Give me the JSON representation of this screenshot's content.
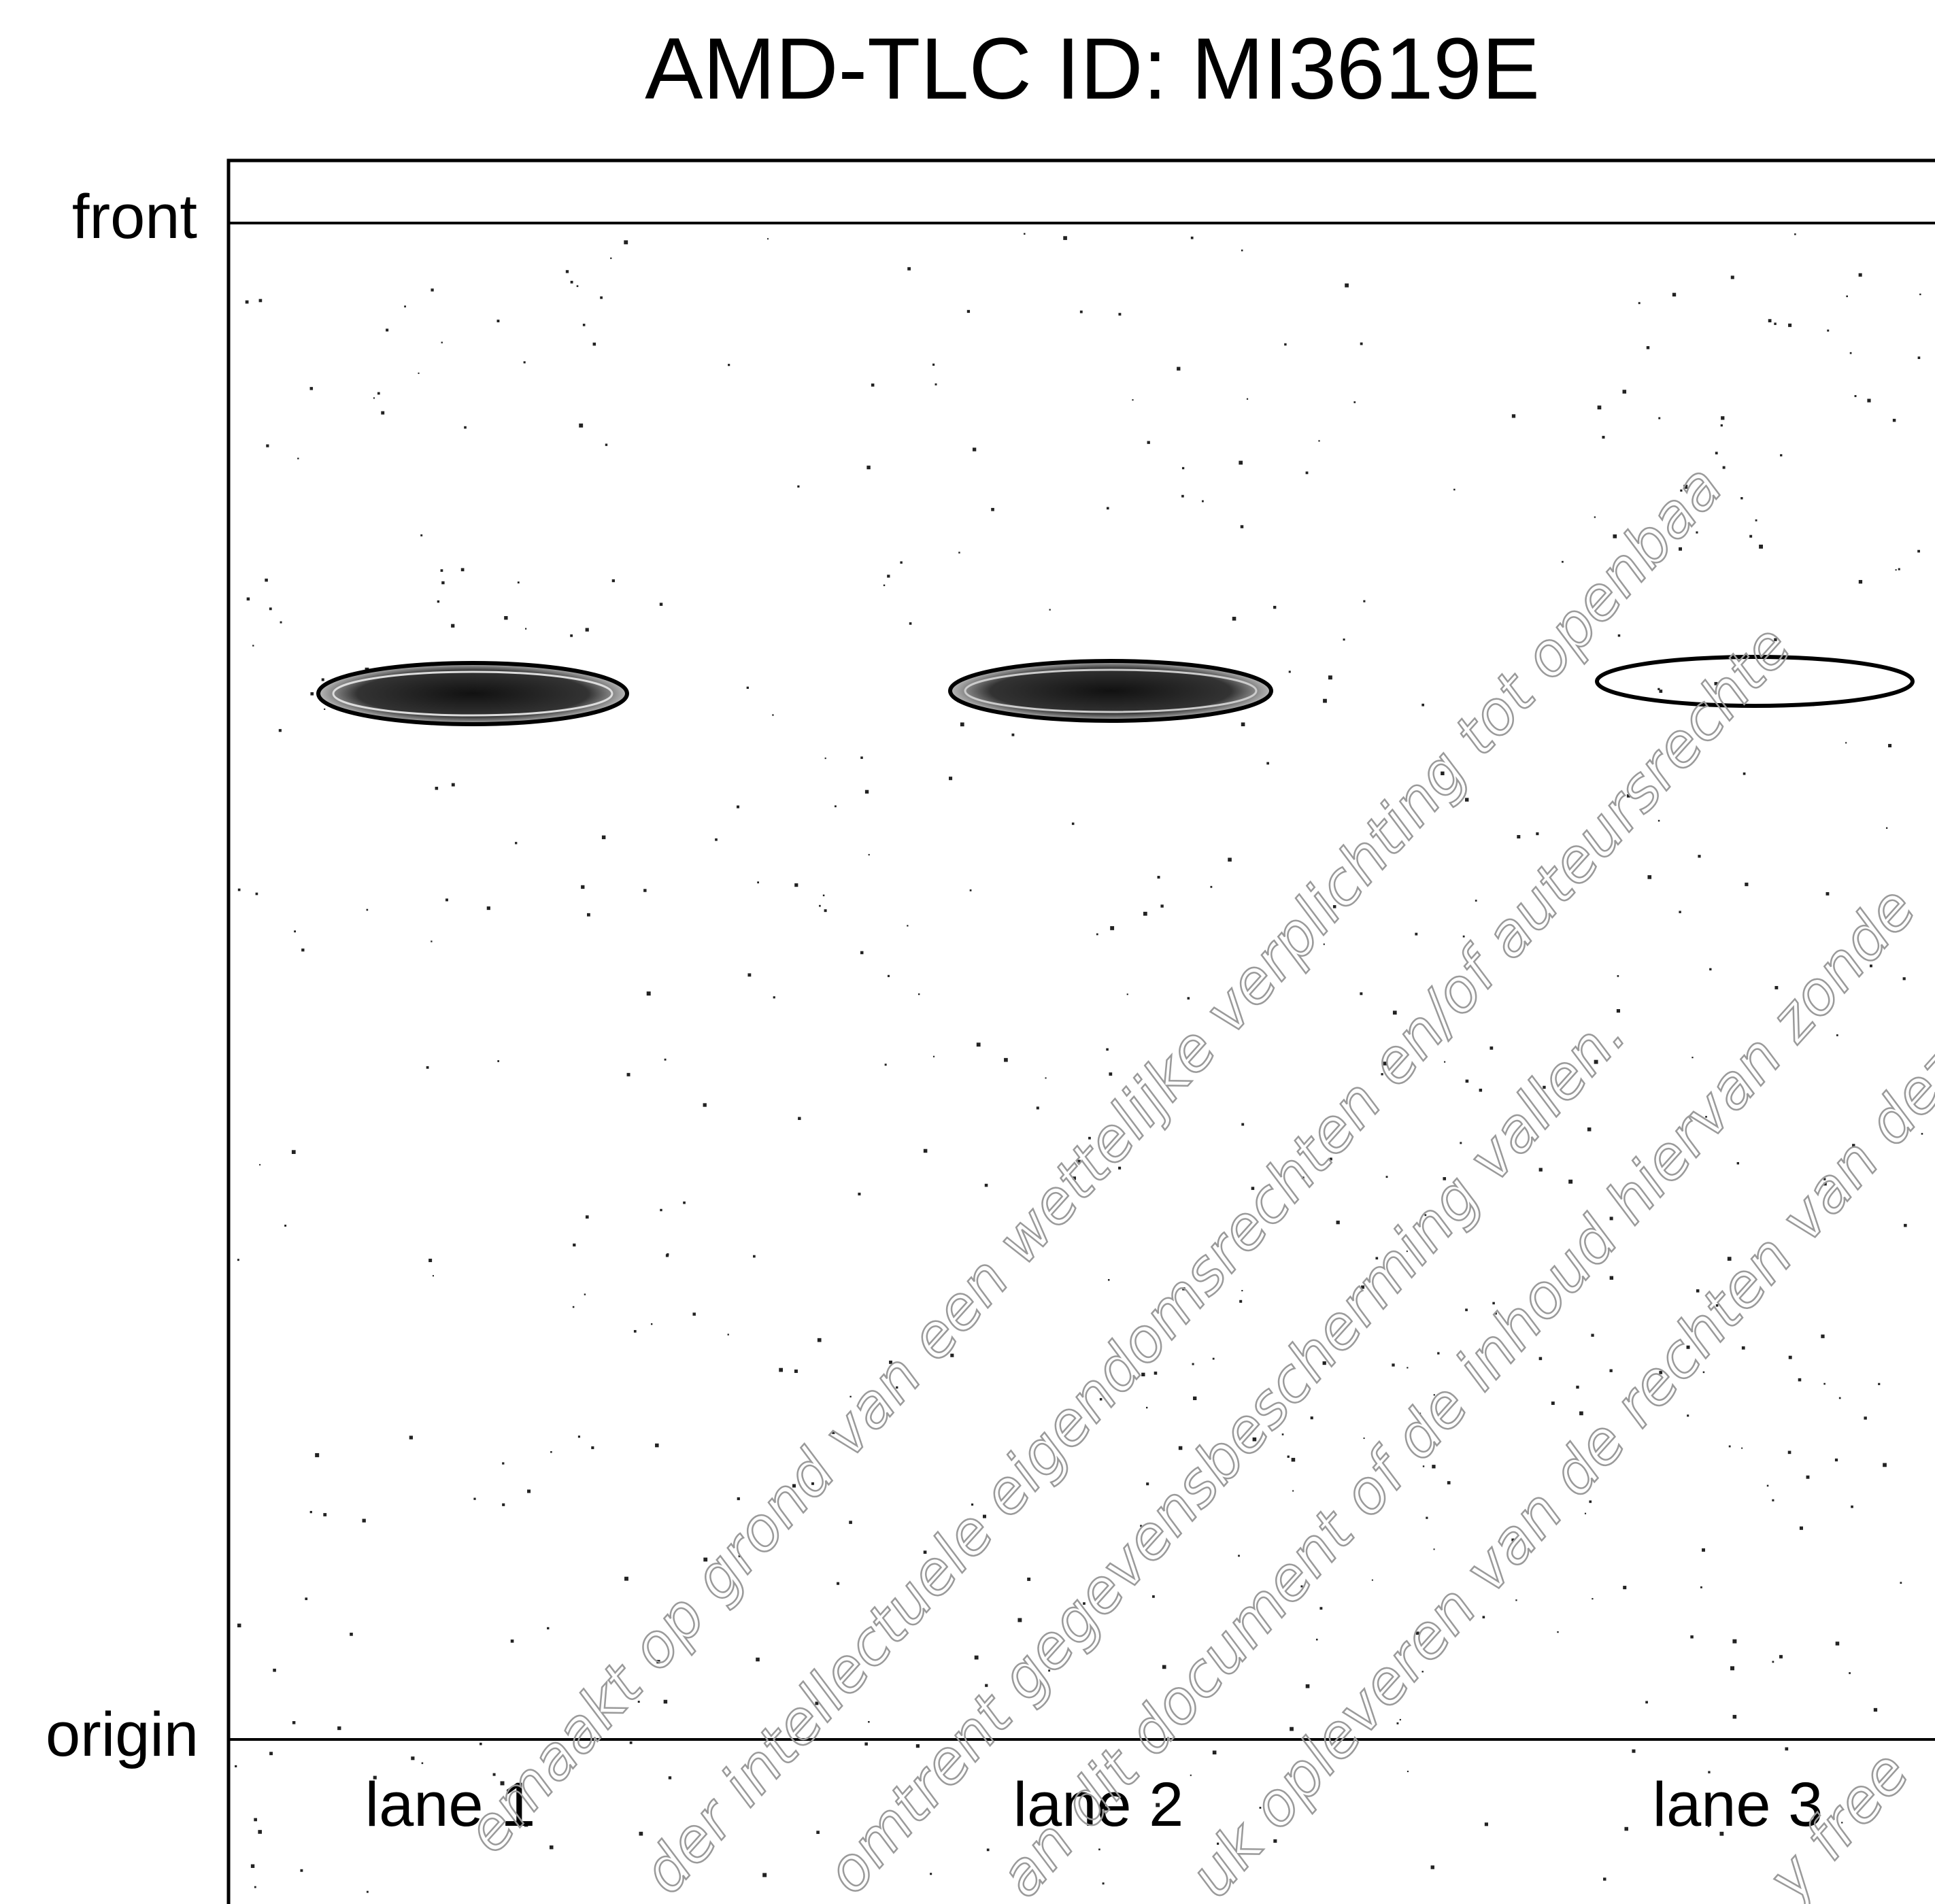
{
  "header": {
    "title": "AMD-TLC ID: MI3619E"
  },
  "plate": {
    "front_label": "front",
    "origin_label": "origin",
    "lanes": [
      {
        "label": "lane 1"
      },
      {
        "label": "lane 2"
      },
      {
        "label": "lane 3"
      }
    ]
  },
  "watermark": {
    "lines": [
      "emaakt op grond van een wettelijke verplichting tot openbaa",
      "der intellectuele eigendomsrechten en/of auteursrechte",
      "omtrent gegevensbescherming vallen.",
      "an dit document of de inhoud hiervan zonde",
      "uk opleveren van de rechten van dez",
      "y free"
    ]
  }
}
